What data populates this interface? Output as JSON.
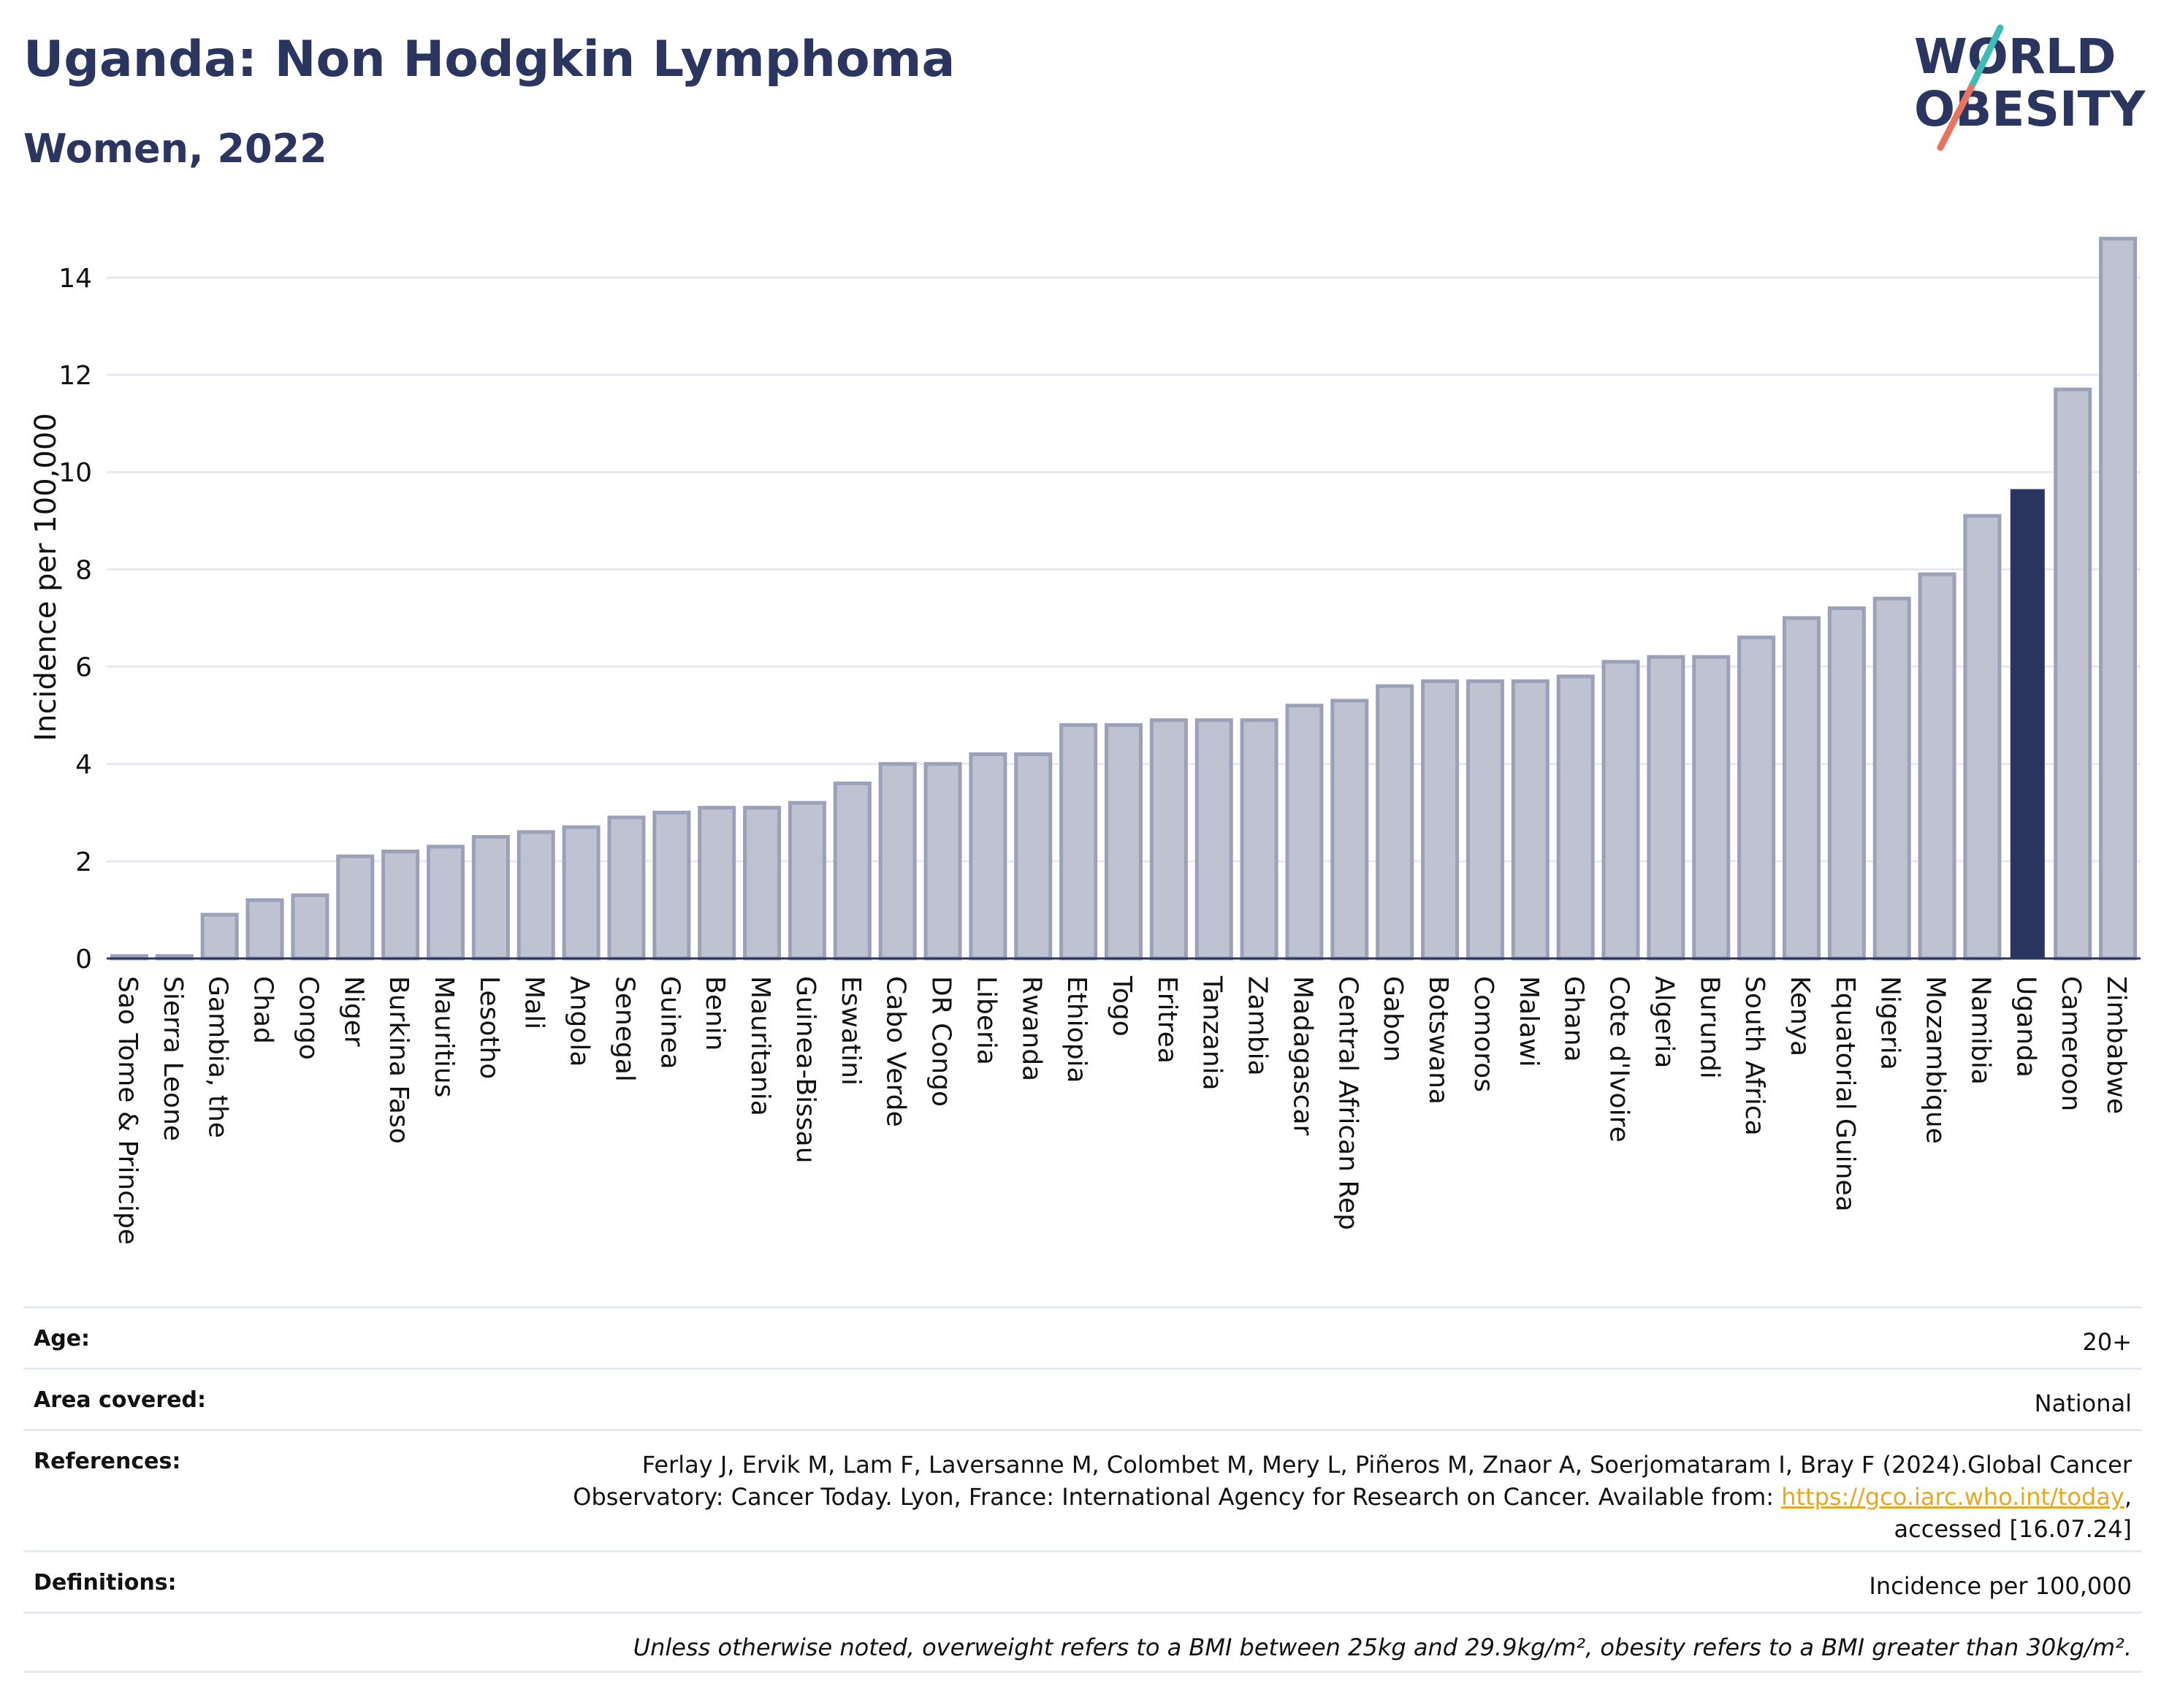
{
  "header": {
    "title": "Uganda: Non Hodgkin Lymphoma",
    "subtitle": "Women, 2022"
  },
  "logo": {
    "line1": "WORLD",
    "line2": "OBESITY",
    "colors": {
      "text": "#2a3560",
      "slash_teal": "#3fbcb8",
      "slash_coral": "#e8735e"
    }
  },
  "chart_data": {
    "type": "bar",
    "title": "Uganda: Non Hodgkin Lymphoma",
    "subtitle": "Women, 2022",
    "xlabel": "",
    "ylabel": "Incidence per 100,000",
    "ylim": [
      0,
      14.9
    ],
    "yticks": [
      0,
      2,
      4,
      6,
      8,
      10,
      12,
      14
    ],
    "grid": true,
    "highlight": "Uganda",
    "colors": {
      "bar": "#bfc3d1",
      "bar_edge": "#9aa1b8",
      "highlight": "#2a3560",
      "grid": "#e6e9f0"
    },
    "categories": [
      "Sao Tome & Principe",
      "Sierra Leone",
      "Gambia, the",
      "Chad",
      "Congo",
      "Niger",
      "Burkina Faso",
      "Mauritius",
      "Lesotho",
      "Mali",
      "Angola",
      "Senegal",
      "Guinea",
      "Benin",
      "Mauritania",
      "Guinea-Bissau",
      "Eswatini",
      "Cabo Verde",
      "DR Congo",
      "Liberia",
      "Rwanda",
      "Ethiopia",
      "Togo",
      "Eritrea",
      "Tanzania",
      "Zambia",
      "Madagascar",
      "Central African Rep",
      "Gabon",
      "Botswana",
      "Comoros",
      "Malawi",
      "Ghana",
      "Cote d'Ivoire",
      "Algeria",
      "Burundi",
      "South Africa",
      "Kenya",
      "Equatorial Guinea",
      "Nigeria",
      "Mozambique",
      "Namibia",
      "Uganda",
      "Cameroon",
      "Zimbabwe"
    ],
    "values": [
      0.05,
      0.05,
      0.9,
      1.2,
      1.3,
      2.1,
      2.2,
      2.3,
      2.5,
      2.6,
      2.7,
      2.9,
      3.0,
      3.1,
      3.1,
      3.2,
      3.6,
      4.0,
      4.0,
      4.2,
      4.2,
      4.8,
      4.8,
      4.9,
      4.9,
      4.9,
      5.2,
      5.3,
      5.6,
      5.7,
      5.7,
      5.7,
      5.8,
      6.1,
      6.2,
      6.2,
      6.6,
      7.0,
      7.2,
      7.4,
      7.9,
      9.1,
      9.65,
      11.7,
      14.8
    ]
  },
  "metadata": {
    "age_label": "Age:",
    "age_value": "20+",
    "area_label": "Area covered:",
    "area_value": "National",
    "references_label": "References:",
    "references_text_1": "Ferlay J, Ervik M, Lam F, Laversanne M, Colombet M, Mery L, Piñeros M, Znaor A, Soerjomataram I, Bray F (2024).Global Cancer",
    "references_text_2": "Observatory: Cancer Today. Lyon, France: International Agency for Research on Cancer. Available from: ",
    "references_link": "https://gco.iarc.who.int/today",
    "references_text_3": ",",
    "references_text_4": "accessed [16.07.24]",
    "definitions_label": "Definitions:",
    "definitions_value": "Incidence per 100,000",
    "note": "Unless otherwise noted, overweight refers to a BMI between 25kg and 29.9kg/m², obesity refers to a BMI greater than 30kg/m²."
  }
}
